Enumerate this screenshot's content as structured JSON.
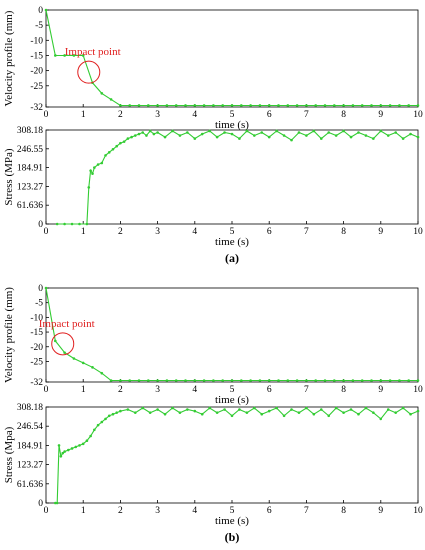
{
  "chart_data": [
    {
      "panel": "a",
      "type": "line",
      "xlabel": "time (s)",
      "ylabel": "Velocity profile (mm)",
      "xlim": [
        0,
        10
      ],
      "ylim": [
        -32,
        0
      ],
      "xticks": [
        "0",
        "1",
        "2",
        "3",
        "4",
        "5",
        "6",
        "7",
        "8",
        "9",
        "10"
      ],
      "yticks": [
        "0",
        "-5",
        "-10",
        "-15",
        "-20",
        "-25",
        "-32"
      ],
      "ytick_values": [
        0,
        -5,
        -10,
        -15,
        -20,
        -25,
        -32
      ],
      "color": "#33cc33",
      "annotation": {
        "text": "Impact point",
        "x": 1.15,
        "y": -20.5
      },
      "x": [
        0,
        0.25,
        0.5,
        0.75,
        1.0,
        1.25,
        1.5,
        1.75,
        2.0,
        2.25,
        2.5,
        2.75,
        3.0,
        3.25,
        3.5,
        3.75,
        4.0,
        4.25,
        4.5,
        4.75,
        5.0,
        5.25,
        5.5,
        5.75,
        6.0,
        6.25,
        6.5,
        6.75,
        7.0,
        7.25,
        7.5,
        7.75,
        8.0,
        8.25,
        8.5,
        8.75,
        9.0,
        9.25,
        9.5,
        9.75,
        10.0
      ],
      "y": [
        0,
        -15,
        -15,
        -15,
        -15,
        -24,
        -27.5,
        -29.5,
        -31.5,
        -31.5,
        -31.5,
        -31.5,
        -31.5,
        -31.5,
        -31.5,
        -31.5,
        -31.5,
        -31.5,
        -31.5,
        -31.5,
        -31.5,
        -31.5,
        -31.5,
        -31.5,
        -31.5,
        -31.5,
        -31.5,
        -31.5,
        -31.5,
        -31.5,
        -31.5,
        -31.5,
        -31.5,
        -31.5,
        -31.5,
        -31.5,
        -31.5,
        -31.5,
        -31.5,
        -31.5,
        -31.5
      ]
    },
    {
      "panel": "a",
      "type": "line",
      "xlabel": "time (s)",
      "ylabel": "Stress (MPa)",
      "xlim": [
        0,
        10
      ],
      "ylim": [
        0,
        308.18
      ],
      "xticks": [
        "0",
        "1",
        "2",
        "3",
        "4",
        "5",
        "6",
        "7",
        "8",
        "9",
        "10"
      ],
      "yticks": [
        "0",
        "61.636",
        "123.27",
        "184.91",
        "246.55",
        "308.18"
      ],
      "ytick_values": [
        0,
        61.636,
        123.27,
        184.91,
        246.55,
        308.18
      ],
      "color": "#33cc33",
      "x": [
        0.3,
        0.5,
        0.7,
        0.9,
        1.1,
        1.15,
        1.2,
        1.25,
        1.3,
        1.4,
        1.5,
        1.6,
        1.7,
        1.8,
        1.9,
        2.0,
        2.1,
        2.2,
        2.3,
        2.4,
        2.5,
        2.6,
        2.7,
        2.8,
        2.9,
        3.0,
        3.2,
        3.4,
        3.6,
        3.8,
        4.0,
        4.2,
        4.4,
        4.6,
        4.8,
        5.0,
        5.2,
        5.4,
        5.6,
        5.8,
        6.0,
        6.2,
        6.4,
        6.6,
        6.8,
        7.0,
        7.2,
        7.4,
        7.6,
        7.8,
        8.0,
        8.2,
        8.4,
        8.6,
        8.8,
        9.0,
        9.2,
        9.4,
        9.6,
        9.8,
        10.0
      ],
      "y": [
        0,
        0,
        0,
        0,
        0,
        120,
        175,
        165,
        185,
        195,
        200,
        225,
        235,
        245,
        255,
        265,
        270,
        280,
        285,
        290,
        295,
        300,
        290,
        305,
        295,
        300,
        285,
        305,
        290,
        300,
        280,
        295,
        305,
        285,
        300,
        295,
        280,
        305,
        290,
        300,
        285,
        305,
        290,
        275,
        300,
        290,
        305,
        280,
        300,
        290,
        305,
        285,
        300,
        290,
        280,
        305,
        290,
        300,
        280,
        295,
        285
      ]
    },
    {
      "panel": "b",
      "type": "line",
      "xlabel": "time (s)",
      "ylabel": "Velocity profile (mm)",
      "xlim": [
        0,
        10
      ],
      "ylim": [
        -32,
        0
      ],
      "xticks": [
        "0",
        "1",
        "2",
        "3",
        "4",
        "5",
        "6",
        "7",
        "8",
        "9",
        "10"
      ],
      "yticks": [
        "0",
        "-5",
        "-10",
        "-15",
        "-20",
        "-25",
        "-32"
      ],
      "ytick_values": [
        0,
        -5,
        -10,
        -15,
        -20,
        -25,
        -32
      ],
      "color": "#33cc33",
      "annotation": {
        "text": "Impact point",
        "x": 0.45,
        "y": -19
      },
      "x": [
        0,
        0.25,
        0.5,
        0.75,
        1.0,
        1.25,
        1.5,
        1.75,
        2.0,
        2.25,
        2.5,
        2.75,
        3.0,
        3.25,
        3.5,
        3.75,
        4.0,
        4.25,
        4.5,
        4.75,
        5.0,
        5.25,
        5.5,
        5.75,
        6.0,
        6.25,
        6.5,
        6.75,
        7.0,
        7.25,
        7.5,
        7.75,
        8.0,
        8.25,
        8.5,
        8.75,
        9.0,
        9.25,
        9.5,
        9.75,
        10.0
      ],
      "y": [
        0,
        -18,
        -22,
        -24,
        -25.5,
        -27,
        -29,
        -31.5,
        -31.5,
        -31.5,
        -31.5,
        -31.5,
        -31.5,
        -31.5,
        -31.5,
        -31.5,
        -31.5,
        -31.5,
        -31.5,
        -31.5,
        -31.5,
        -31.5,
        -31.5,
        -31.5,
        -31.5,
        -31.5,
        -31.5,
        -31.5,
        -31.5,
        -31.5,
        -31.5,
        -31.5,
        -31.5,
        -31.5,
        -31.5,
        -31.5,
        -31.5,
        -31.5,
        -31.5,
        -31.5,
        -31.5
      ]
    },
    {
      "panel": "b",
      "type": "line",
      "xlabel": "time (s)",
      "ylabel": "Stress (Mpa)",
      "xlim": [
        0,
        10
      ],
      "ylim": [
        0,
        308.18
      ],
      "xticks": [
        "0",
        "1",
        "2",
        "3",
        "4",
        "5",
        "6",
        "7",
        "8",
        "9",
        "10"
      ],
      "yticks": [
        "0",
        "61.636",
        "123.27",
        "184.91",
        "246.54",
        "308.18"
      ],
      "ytick_values": [
        0,
        61.636,
        123.27,
        184.91,
        246.54,
        308.18
      ],
      "color": "#33cc33",
      "x": [
        0.25,
        0.3,
        0.35,
        0.4,
        0.45,
        0.5,
        0.6,
        0.7,
        0.8,
        0.9,
        1.0,
        1.1,
        1.2,
        1.3,
        1.4,
        1.5,
        1.6,
        1.7,
        1.8,
        1.9,
        2.0,
        2.2,
        2.4,
        2.6,
        2.8,
        3.0,
        3.2,
        3.4,
        3.6,
        3.8,
        4.0,
        4.2,
        4.4,
        4.6,
        4.8,
        5.0,
        5.2,
        5.4,
        5.6,
        5.8,
        6.0,
        6.2,
        6.4,
        6.6,
        6.8,
        7.0,
        7.2,
        7.4,
        7.6,
        7.8,
        8.0,
        8.2,
        8.4,
        8.6,
        8.8,
        9.0,
        9.2,
        9.4,
        9.6,
        9.8,
        10.0
      ],
      "y": [
        0,
        0,
        185,
        150,
        160,
        165,
        170,
        175,
        180,
        185,
        190,
        200,
        215,
        235,
        250,
        260,
        270,
        280,
        285,
        290,
        295,
        300,
        290,
        305,
        290,
        300,
        285,
        305,
        290,
        300,
        295,
        285,
        305,
        290,
        300,
        280,
        300,
        290,
        305,
        285,
        295,
        305,
        280,
        300,
        290,
        305,
        285,
        300,
        280,
        305,
        290,
        300,
        285,
        305,
        290,
        270,
        300,
        290,
        305,
        285,
        295
      ]
    }
  ],
  "panel_labels": [
    "(a)",
    "(b)"
  ]
}
